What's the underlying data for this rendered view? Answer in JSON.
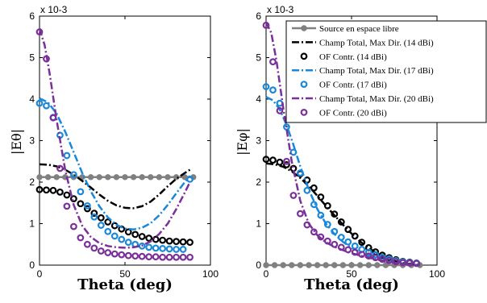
{
  "chart_data": [
    {
      "type": "line",
      "xlabel": "Theta (deg)",
      "ylabel": "|Eθ|",
      "y_exponent": "x 10-3",
      "xlim": [
        0,
        100
      ],
      "ylim": [
        0,
        6
      ],
      "xticks": [
        "0",
        "50",
        "100"
      ],
      "yticks": [
        "0",
        "1",
        "2",
        "3",
        "4",
        "5",
        "6"
      ],
      "grid": false,
      "series": [
        {
          "name": "Source en espace libre",
          "color": "#808080",
          "style": "solid-marker",
          "x": [
            0,
            5,
            10,
            15,
            20,
            25,
            30,
            35,
            40,
            45,
            50,
            55,
            60,
            65,
            70,
            75,
            80,
            85,
            90
          ],
          "y": [
            2.12,
            2.12,
            2.12,
            2.12,
            2.12,
            2.12,
            2.12,
            2.12,
            2.12,
            2.12,
            2.12,
            2.12,
            2.12,
            2.12,
            2.12,
            2.12,
            2.12,
            2.12,
            2.12
          ]
        },
        {
          "name": "Champ Total, Max Dir. (14 dBi)",
          "color": "#000000",
          "style": "dashdot",
          "x": [
            0,
            5,
            10,
            15,
            20,
            25,
            30,
            35,
            40,
            45,
            50,
            55,
            60,
            65,
            70,
            75,
            80,
            85,
            88
          ],
          "y": [
            2.43,
            2.42,
            2.38,
            2.3,
            2.18,
            2.03,
            1.87,
            1.7,
            1.55,
            1.44,
            1.38,
            1.37,
            1.42,
            1.53,
            1.7,
            1.9,
            2.08,
            2.22,
            2.3
          ]
        },
        {
          "name": "OF Contr. (14 dBi)",
          "color": "#000000",
          "style": "circles",
          "x": [
            0,
            4,
            8,
            12,
            16,
            20,
            24,
            28,
            32,
            36,
            40,
            44,
            48,
            52,
            56,
            60,
            64,
            68,
            72,
            76,
            80,
            84,
            88
          ],
          "y": [
            1.82,
            1.81,
            1.8,
            1.76,
            1.69,
            1.6,
            1.48,
            1.36,
            1.25,
            1.14,
            1.04,
            0.95,
            0.87,
            0.8,
            0.74,
            0.69,
            0.65,
            0.62,
            0.6,
            0.58,
            0.57,
            0.56,
            0.55
          ]
        },
        {
          "name": "Champ Total, Max Dir. (17 dBi)",
          "color": "#1a88d8",
          "style": "dashdot",
          "x": [
            0,
            5,
            10,
            15,
            20,
            25,
            30,
            35,
            40,
            45,
            50,
            55,
            60,
            65,
            70,
            75,
            80,
            85,
            88
          ],
          "y": [
            4.02,
            3.92,
            3.65,
            3.22,
            2.72,
            2.22,
            1.78,
            1.42,
            1.15,
            0.97,
            0.88,
            0.86,
            0.9,
            1.01,
            1.2,
            1.45,
            1.73,
            2.0,
            2.15
          ]
        },
        {
          "name": "OF Contr. (17 dBi)",
          "color": "#1a88d8",
          "style": "circles",
          "x": [
            0,
            4,
            8,
            12,
            16,
            20,
            24,
            28,
            32,
            36,
            40,
            44,
            48,
            52,
            56,
            60,
            64,
            68,
            72,
            76,
            80,
            84,
            88
          ],
          "y": [
            3.9,
            3.84,
            3.56,
            3.13,
            2.64,
            2.18,
            1.77,
            1.43,
            1.16,
            0.96,
            0.81,
            0.7,
            0.62,
            0.55,
            0.5,
            0.46,
            0.43,
            0.41,
            0.4,
            0.39,
            0.38,
            0.38,
            2.07
          ]
        },
        {
          "name": "Champ Total, Max Dir. (20 dBi)",
          "color": "#7a2f99",
          "style": "dashdot",
          "x": [
            0,
            3,
            6,
            10,
            15,
            20,
            25,
            30,
            35,
            40,
            45,
            50,
            55,
            60,
            65,
            70,
            75,
            80,
            85,
            88
          ],
          "y": [
            5.7,
            5.3,
            4.6,
            3.5,
            2.3,
            1.45,
            0.95,
            0.68,
            0.53,
            0.46,
            0.43,
            0.42,
            0.43,
            0.47,
            0.57,
            0.75,
            1.0,
            1.35,
            1.75,
            2.0
          ]
        },
        {
          "name": "OF Contr. (20 dBi)",
          "color": "#7a2f99",
          "style": "circles",
          "x": [
            0,
            4,
            8,
            12,
            16,
            20,
            24,
            28,
            32,
            36,
            40,
            44,
            48,
            52,
            56,
            60,
            64,
            68,
            72,
            76,
            80,
            84,
            88
          ],
          "y": [
            5.62,
            4.97,
            3.55,
            2.33,
            1.42,
            0.93,
            0.66,
            0.5,
            0.41,
            0.34,
            0.3,
            0.27,
            0.25,
            0.23,
            0.22,
            0.21,
            0.2,
            0.2,
            0.19,
            0.19,
            0.19,
            0.19,
            0.19
          ]
        }
      ]
    },
    {
      "type": "line",
      "xlabel": "Theta (deg)",
      "ylabel": "|Eφ|",
      "y_exponent": "x 10-3",
      "xlim": [
        0,
        100
      ],
      "ylim": [
        0,
        6
      ],
      "xticks": [
        "0",
        "50",
        "100"
      ],
      "yticks": [
        "0",
        "1",
        "2",
        "3",
        "4",
        "5",
        "6"
      ],
      "grid": false,
      "legend_position": "top-right",
      "series": [
        {
          "name": "Source en espace libre",
          "color": "#808080",
          "style": "solid-marker",
          "x": [
            0,
            5,
            10,
            15,
            20,
            25,
            30,
            35,
            40,
            45,
            50,
            55,
            60,
            65,
            70,
            75,
            80,
            85,
            90
          ],
          "y": [
            0,
            0,
            0,
            0,
            0,
            0,
            0,
            0,
            0,
            0,
            0,
            0,
            0,
            0,
            0,
            0,
            0,
            0,
            0
          ]
        },
        {
          "name": "Champ Total, Max Dir. (14 dBi)",
          "color": "#000000",
          "style": "dashdot",
          "x": [
            0,
            5,
            10,
            15,
            20,
            25,
            30,
            35,
            40,
            45,
            50,
            55,
            60,
            65,
            70,
            75,
            80,
            85,
            90
          ],
          "y": [
            2.45,
            2.43,
            2.37,
            2.26,
            2.1,
            1.9,
            1.67,
            1.43,
            1.2,
            0.97,
            0.76,
            0.57,
            0.41,
            0.28,
            0.18,
            0.1,
            0.05,
            0.02,
            0.0
          ]
        },
        {
          "name": "OF Contr. (14 dBi)",
          "color": "#000000",
          "style": "circles",
          "x": [
            0,
            4,
            8,
            12,
            16,
            20,
            24,
            28,
            32,
            36,
            40,
            44,
            48,
            52,
            56,
            60,
            64,
            68,
            72,
            76,
            80,
            84,
            88
          ],
          "y": [
            2.55,
            2.53,
            2.48,
            2.42,
            2.33,
            2.2,
            2.05,
            1.86,
            1.64,
            1.43,
            1.23,
            1.04,
            0.86,
            0.7,
            0.55,
            0.42,
            0.32,
            0.24,
            0.18,
            0.13,
            0.09,
            0.07,
            0.05
          ]
        },
        {
          "name": "Champ Total, Max Dir. (17 dBi)",
          "color": "#1a88d8",
          "style": "dashdot",
          "x": [
            0,
            4,
            8,
            12,
            16,
            20,
            25,
            30,
            35,
            40,
            45,
            50,
            55,
            60,
            65,
            70,
            75,
            80,
            85,
            90
          ],
          "y": [
            4.05,
            3.97,
            3.75,
            3.38,
            2.9,
            2.38,
            1.82,
            1.35,
            1.0,
            0.75,
            0.56,
            0.42,
            0.31,
            0.22,
            0.15,
            0.1,
            0.06,
            0.03,
            0.01,
            0.0
          ]
        },
        {
          "name": "OF Contr. (17 dBi)",
          "color": "#1a88d8",
          "style": "circles",
          "x": [
            0,
            4,
            8,
            12,
            16,
            20,
            24,
            28,
            32,
            36,
            40,
            44,
            48,
            52,
            56,
            60,
            64,
            68,
            72,
            76,
            80,
            84,
            88
          ],
          "y": [
            4.3,
            4.22,
            3.9,
            3.33,
            2.72,
            2.22,
            1.8,
            1.46,
            1.2,
            0.98,
            0.81,
            0.67,
            0.56,
            0.46,
            0.38,
            0.31,
            0.25,
            0.19,
            0.15,
            0.11,
            0.08,
            0.06,
            0.05
          ]
        },
        {
          "name": "Champ Total, Max Dir. (20 dBi)",
          "color": "#7a2f99",
          "style": "dashdot",
          "x": [
            0,
            3,
            6,
            10,
            15,
            20,
            25,
            30,
            35,
            40,
            45,
            50,
            55,
            60,
            65,
            70,
            75,
            80,
            85,
            90
          ],
          "y": [
            5.85,
            5.6,
            4.95,
            3.8,
            2.5,
            1.55,
            1.0,
            0.72,
            0.55,
            0.44,
            0.36,
            0.29,
            0.23,
            0.18,
            0.13,
            0.09,
            0.06,
            0.03,
            0.01,
            0.0
          ]
        },
        {
          "name": "OF Contr. (20 dBi)",
          "color": "#7a2f99",
          "style": "circles",
          "x": [
            0,
            4,
            8,
            12,
            16,
            20,
            24,
            28,
            32,
            36,
            40,
            44,
            48,
            52,
            56,
            60,
            64,
            68,
            72,
            76,
            80,
            84,
            88
          ],
          "y": [
            5.78,
            4.9,
            3.72,
            2.5,
            1.68,
            1.24,
            0.97,
            0.8,
            0.68,
            0.58,
            0.5,
            0.43,
            0.37,
            0.31,
            0.26,
            0.22,
            0.18,
            0.14,
            0.11,
            0.08,
            0.06,
            0.05,
            0.04
          ]
        }
      ]
    }
  ]
}
